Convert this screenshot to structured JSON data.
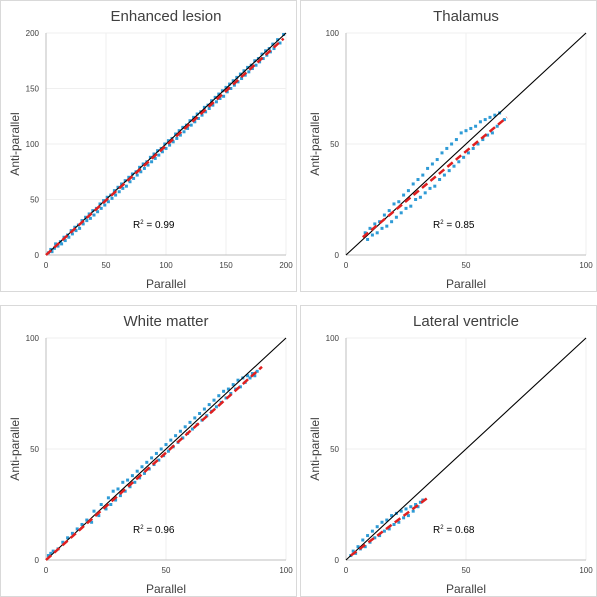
{
  "chart_data": [
    {
      "type": "scatter",
      "title": "Enhanced lesion",
      "xlabel": "Parallel",
      "ylabel": "Anti-parallel",
      "xlim": [
        0,
        200
      ],
      "ylim": [
        0,
        200
      ],
      "xticks": [
        0,
        50,
        100,
        150,
        200
      ],
      "yticks": [
        0,
        50,
        100,
        150,
        200
      ],
      "r2_prefix": "R",
      "r2_suffix": " = 0.99",
      "r2": 0.99,
      "point_color": "#2E9BD6",
      "fit_color": "#E02020",
      "identity_color": "#000000",
      "identity_line": {
        "from": [
          0,
          0
        ],
        "to": [
          200,
          200
        ]
      },
      "fit_line": {
        "from": [
          0,
          0
        ],
        "to": [
          198,
          195
        ]
      },
      "points": [
        [
          2,
          2
        ],
        [
          4,
          5
        ],
        [
          5,
          3
        ],
        [
          7,
          6
        ],
        [
          8,
          10
        ],
        [
          10,
          8
        ],
        [
          12,
          12
        ],
        [
          13,
          10
        ],
        [
          15,
          16
        ],
        [
          16,
          13
        ],
        [
          18,
          18
        ],
        [
          19,
          16
        ],
        [
          21,
          22
        ],
        [
          22,
          19
        ],
        [
          24,
          25
        ],
        [
          25,
          22
        ],
        [
          27,
          27
        ],
        [
          28,
          24
        ],
        [
          30,
          31
        ],
        [
          31,
          28
        ],
        [
          33,
          34
        ],
        [
          34,
          31
        ],
        [
          36,
          37
        ],
        [
          37,
          33
        ],
        [
          39,
          40
        ],
        [
          40,
          36
        ],
        [
          42,
          42
        ],
        [
          43,
          39
        ],
        [
          45,
          46
        ],
        [
          46,
          42
        ],
        [
          48,
          49
        ],
        [
          49,
          45
        ],
        [
          51,
          52
        ],
        [
          52,
          48
        ],
        [
          54,
          54
        ],
        [
          55,
          51
        ],
        [
          57,
          58
        ],
        [
          58,
          54
        ],
        [
          60,
          61
        ],
        [
          61,
          57
        ],
        [
          63,
          64
        ],
        [
          64,
          60
        ],
        [
          66,
          67
        ],
        [
          67,
          62
        ],
        [
          69,
          70
        ],
        [
          70,
          66
        ],
        [
          72,
          73
        ],
        [
          73,
          69
        ],
        [
          75,
          75
        ],
        [
          76,
          72
        ],
        [
          78,
          79
        ],
        [
          79,
          75
        ],
        [
          81,
          82
        ],
        [
          82,
          78
        ],
        [
          84,
          84
        ],
        [
          85,
          81
        ],
        [
          87,
          88
        ],
        [
          88,
          84
        ],
        [
          90,
          91
        ],
        [
          91,
          87
        ],
        [
          93,
          94
        ],
        [
          94,
          90
        ],
        [
          96,
          96
        ],
        [
          97,
          93
        ],
        [
          99,
          100
        ],
        [
          100,
          96
        ],
        [
          102,
          103
        ],
        [
          103,
          99
        ],
        [
          105,
          105
        ],
        [
          106,
          102
        ],
        [
          108,
          109
        ],
        [
          109,
          105
        ],
        [
          111,
          112
        ],
        [
          112,
          108
        ],
        [
          114,
          115
        ],
        [
          115,
          111
        ],
        [
          117,
          117
        ],
        [
          118,
          114
        ],
        [
          120,
          121
        ],
        [
          121,
          117
        ],
        [
          123,
          124
        ],
        [
          124,
          120
        ],
        [
          126,
          127
        ],
        [
          127,
          123
        ],
        [
          129,
          129
        ],
        [
          130,
          126
        ],
        [
          132,
          133
        ],
        [
          133,
          129
        ],
        [
          135,
          135
        ],
        [
          136,
          132
        ],
        [
          138,
          139
        ],
        [
          139,
          135
        ],
        [
          141,
          142
        ],
        [
          142,
          138
        ],
        [
          144,
          145
        ],
        [
          145,
          141
        ],
        [
          147,
          148
        ],
        [
          148,
          143
        ],
        [
          150,
          151
        ],
        [
          151,
          147
        ],
        [
          153,
          154
        ],
        [
          154,
          150
        ],
        [
          156,
          157
        ],
        [
          157,
          153
        ],
        [
          159,
          160
        ],
        [
          160,
          156
        ],
        [
          162,
          163
        ],
        [
          163,
          159
        ],
        [
          165,
          166
        ],
        [
          166,
          162
        ],
        [
          168,
          169
        ],
        [
          169,
          165
        ],
        [
          171,
          171
        ],
        [
          172,
          168
        ],
        [
          174,
          175
        ],
        [
          175,
          171
        ],
        [
          177,
          177
        ],
        [
          178,
          174
        ],
        [
          180,
          181
        ],
        [
          181,
          177
        ],
        [
          183,
          184
        ],
        [
          184,
          180
        ],
        [
          186,
          186
        ],
        [
          187,
          183
        ],
        [
          189,
          190
        ],
        [
          190,
          186
        ],
        [
          193,
          194
        ],
        [
          195,
          191
        ],
        [
          198,
          200
        ]
      ]
    },
    {
      "type": "scatter",
      "title": "Thalamus",
      "xlabel": "Parallel",
      "ylabel": "Anti-parallel",
      "xlim": [
        0,
        100
      ],
      "ylim": [
        0,
        100
      ],
      "xticks": [
        0,
        50,
        100
      ],
      "yticks": [
        0,
        50,
        100
      ],
      "r2_prefix": "R",
      "r2_suffix": " = 0.85",
      "r2": 0.85,
      "point_color": "#2E9BD6",
      "fit_color": "#E02020",
      "identity_color": "#000000",
      "identity_line": {
        "from": [
          0,
          0
        ],
        "to": [
          100,
          100
        ]
      },
      "fit_line": {
        "from": [
          7,
          8
        ],
        "to": [
          67,
          62
        ]
      },
      "points": [
        [
          8,
          10
        ],
        [
          9,
          7
        ],
        [
          10,
          12
        ],
        [
          11,
          9
        ],
        [
          12,
          14
        ],
        [
          13,
          10
        ],
        [
          14,
          15
        ],
        [
          15,
          12
        ],
        [
          16,
          18
        ],
        [
          17,
          13
        ],
        [
          18,
          20
        ],
        [
          19,
          15
        ],
        [
          20,
          23
        ],
        [
          21,
          17
        ],
        [
          22,
          24
        ],
        [
          23,
          19
        ],
        [
          24,
          27
        ],
        [
          25,
          21
        ],
        [
          26,
          29
        ],
        [
          27,
          22
        ],
        [
          28,
          32
        ],
        [
          29,
          25
        ],
        [
          30,
          34
        ],
        [
          31,
          26
        ],
        [
          32,
          36
        ],
        [
          33,
          28
        ],
        [
          34,
          39
        ],
        [
          35,
          30
        ],
        [
          36,
          41
        ],
        [
          37,
          31
        ],
        [
          38,
          43
        ],
        [
          39,
          34
        ],
        [
          40,
          46
        ],
        [
          41,
          36
        ],
        [
          42,
          48
        ],
        [
          43,
          38
        ],
        [
          44,
          50
        ],
        [
          45,
          40
        ],
        [
          46,
          52
        ],
        [
          47,
          42
        ],
        [
          48,
          55
        ],
        [
          49,
          44
        ],
        [
          50,
          56
        ],
        [
          51,
          46
        ],
        [
          52,
          57
        ],
        [
          53,
          48
        ],
        [
          54,
          58
        ],
        [
          55,
          50
        ],
        [
          56,
          60
        ],
        [
          57,
          52
        ],
        [
          58,
          61
        ],
        [
          59,
          54
        ],
        [
          60,
          62
        ],
        [
          61,
          55
        ],
        [
          62,
          63
        ],
        [
          63,
          58
        ],
        [
          64,
          64
        ],
        [
          66,
          61
        ]
      ]
    },
    {
      "type": "scatter",
      "title": "White matter",
      "xlabel": "Parallel",
      "ylabel": "Anti-parallel",
      "xlim": [
        0,
        100
      ],
      "ylim": [
        0,
        100
      ],
      "xticks": [
        0,
        50,
        100
      ],
      "yticks": [
        0,
        50,
        100
      ],
      "r2_prefix": "R",
      "r2_suffix": " = 0.96",
      "r2": 0.96,
      "point_color": "#2E9BD6",
      "fit_color": "#E02020",
      "identity_color": "#000000",
      "identity_line": {
        "from": [
          0,
          0
        ],
        "to": [
          100,
          100
        ]
      },
      "fit_line": {
        "from": [
          0,
          0
        ],
        "to": [
          90,
          87
        ]
      },
      "points": [
        [
          1,
          2
        ],
        [
          2,
          3
        ],
        [
          3,
          4
        ],
        [
          5,
          5
        ],
        [
          7,
          8
        ],
        [
          9,
          10
        ],
        [
          11,
          12
        ],
        [
          13,
          14
        ],
        [
          15,
          16
        ],
        [
          17,
          18
        ],
        [
          19,
          17
        ],
        [
          20,
          22
        ],
        [
          22,
          20
        ],
        [
          23,
          25
        ],
        [
          25,
          23
        ],
        [
          26,
          28
        ],
        [
          27,
          25
        ],
        [
          28,
          31
        ],
        [
          29,
          27
        ],
        [
          30,
          32
        ],
        [
          31,
          29
        ],
        [
          32,
          35
        ],
        [
          33,
          31
        ],
        [
          34,
          36
        ],
        [
          35,
          33
        ],
        [
          36,
          38
        ],
        [
          37,
          35
        ],
        [
          38,
          40
        ],
        [
          39,
          37
        ],
        [
          40,
          42
        ],
        [
          41,
          39
        ],
        [
          42,
          44
        ],
        [
          43,
          41
        ],
        [
          44,
          46
        ],
        [
          45,
          43
        ],
        [
          46,
          48
        ],
        [
          47,
          45
        ],
        [
          48,
          50
        ],
        [
          49,
          47
        ],
        [
          50,
          52
        ],
        [
          51,
          49
        ],
        [
          52,
          54
        ],
        [
          53,
          51
        ],
        [
          54,
          56
        ],
        [
          55,
          53
        ],
        [
          56,
          58
        ],
        [
          57,
          55
        ],
        [
          58,
          60
        ],
        [
          59,
          57
        ],
        [
          60,
          62
        ],
        [
          61,
          59
        ],
        [
          62,
          64
        ],
        [
          63,
          61
        ],
        [
          64,
          66
        ],
        [
          65,
          63
        ],
        [
          66,
          68
        ],
        [
          67,
          65
        ],
        [
          68,
          70
        ],
        [
          69,
          67
        ],
        [
          70,
          72
        ],
        [
          71,
          69
        ],
        [
          72,
          74
        ],
        [
          73,
          71
        ],
        [
          74,
          76
        ],
        [
          75,
          73
        ],
        [
          76,
          77
        ],
        [
          77,
          75
        ],
        [
          78,
          79
        ],
        [
          79,
          77
        ],
        [
          80,
          81
        ],
        [
          81,
          78
        ],
        [
          82,
          82
        ],
        [
          83,
          80
        ],
        [
          84,
          83
        ],
        [
          85,
          82
        ],
        [
          86,
          84
        ],
        [
          87,
          83
        ],
        [
          88,
          85
        ]
      ]
    },
    {
      "type": "scatter",
      "title": "Lateral ventricle",
      "xlabel": "Parallel",
      "ylabel": "Anti-parallel",
      "xlim": [
        0,
        100
      ],
      "ylim": [
        0,
        100
      ],
      "xticks": [
        0,
        50,
        100
      ],
      "yticks": [
        0,
        50,
        100
      ],
      "r2_prefix": "R",
      "r2_suffix": " = 0.68",
      "r2": 0.68,
      "point_color": "#2E9BD6",
      "fit_color": "#E02020",
      "identity_color": "#000000",
      "identity_line": {
        "from": [
          0,
          0
        ],
        "to": [
          100,
          100
        ]
      },
      "fit_line": {
        "from": [
          2,
          2
        ],
        "to": [
          34,
          28
        ]
      },
      "points": [
        [
          2,
          2
        ],
        [
          3,
          4
        ],
        [
          4,
          3
        ],
        [
          5,
          6
        ],
        [
          6,
          5
        ],
        [
          7,
          9
        ],
        [
          8,
          6
        ],
        [
          9,
          11
        ],
        [
          10,
          8
        ],
        [
          11,
          13
        ],
        [
          12,
          10
        ],
        [
          13,
          15
        ],
        [
          14,
          11
        ],
        [
          15,
          17
        ],
        [
          16,
          13
        ],
        [
          17,
          18
        ],
        [
          18,
          14
        ],
        [
          19,
          20
        ],
        [
          20,
          16
        ],
        [
          21,
          21
        ],
        [
          22,
          17
        ],
        [
          23,
          22
        ],
        [
          24,
          19
        ],
        [
          25,
          23
        ],
        [
          26,
          20
        ],
        [
          27,
          24
        ],
        [
          28,
          22
        ],
        [
          29,
          25
        ],
        [
          30,
          24
        ],
        [
          31,
          26
        ],
        [
          32,
          27
        ]
      ]
    }
  ]
}
